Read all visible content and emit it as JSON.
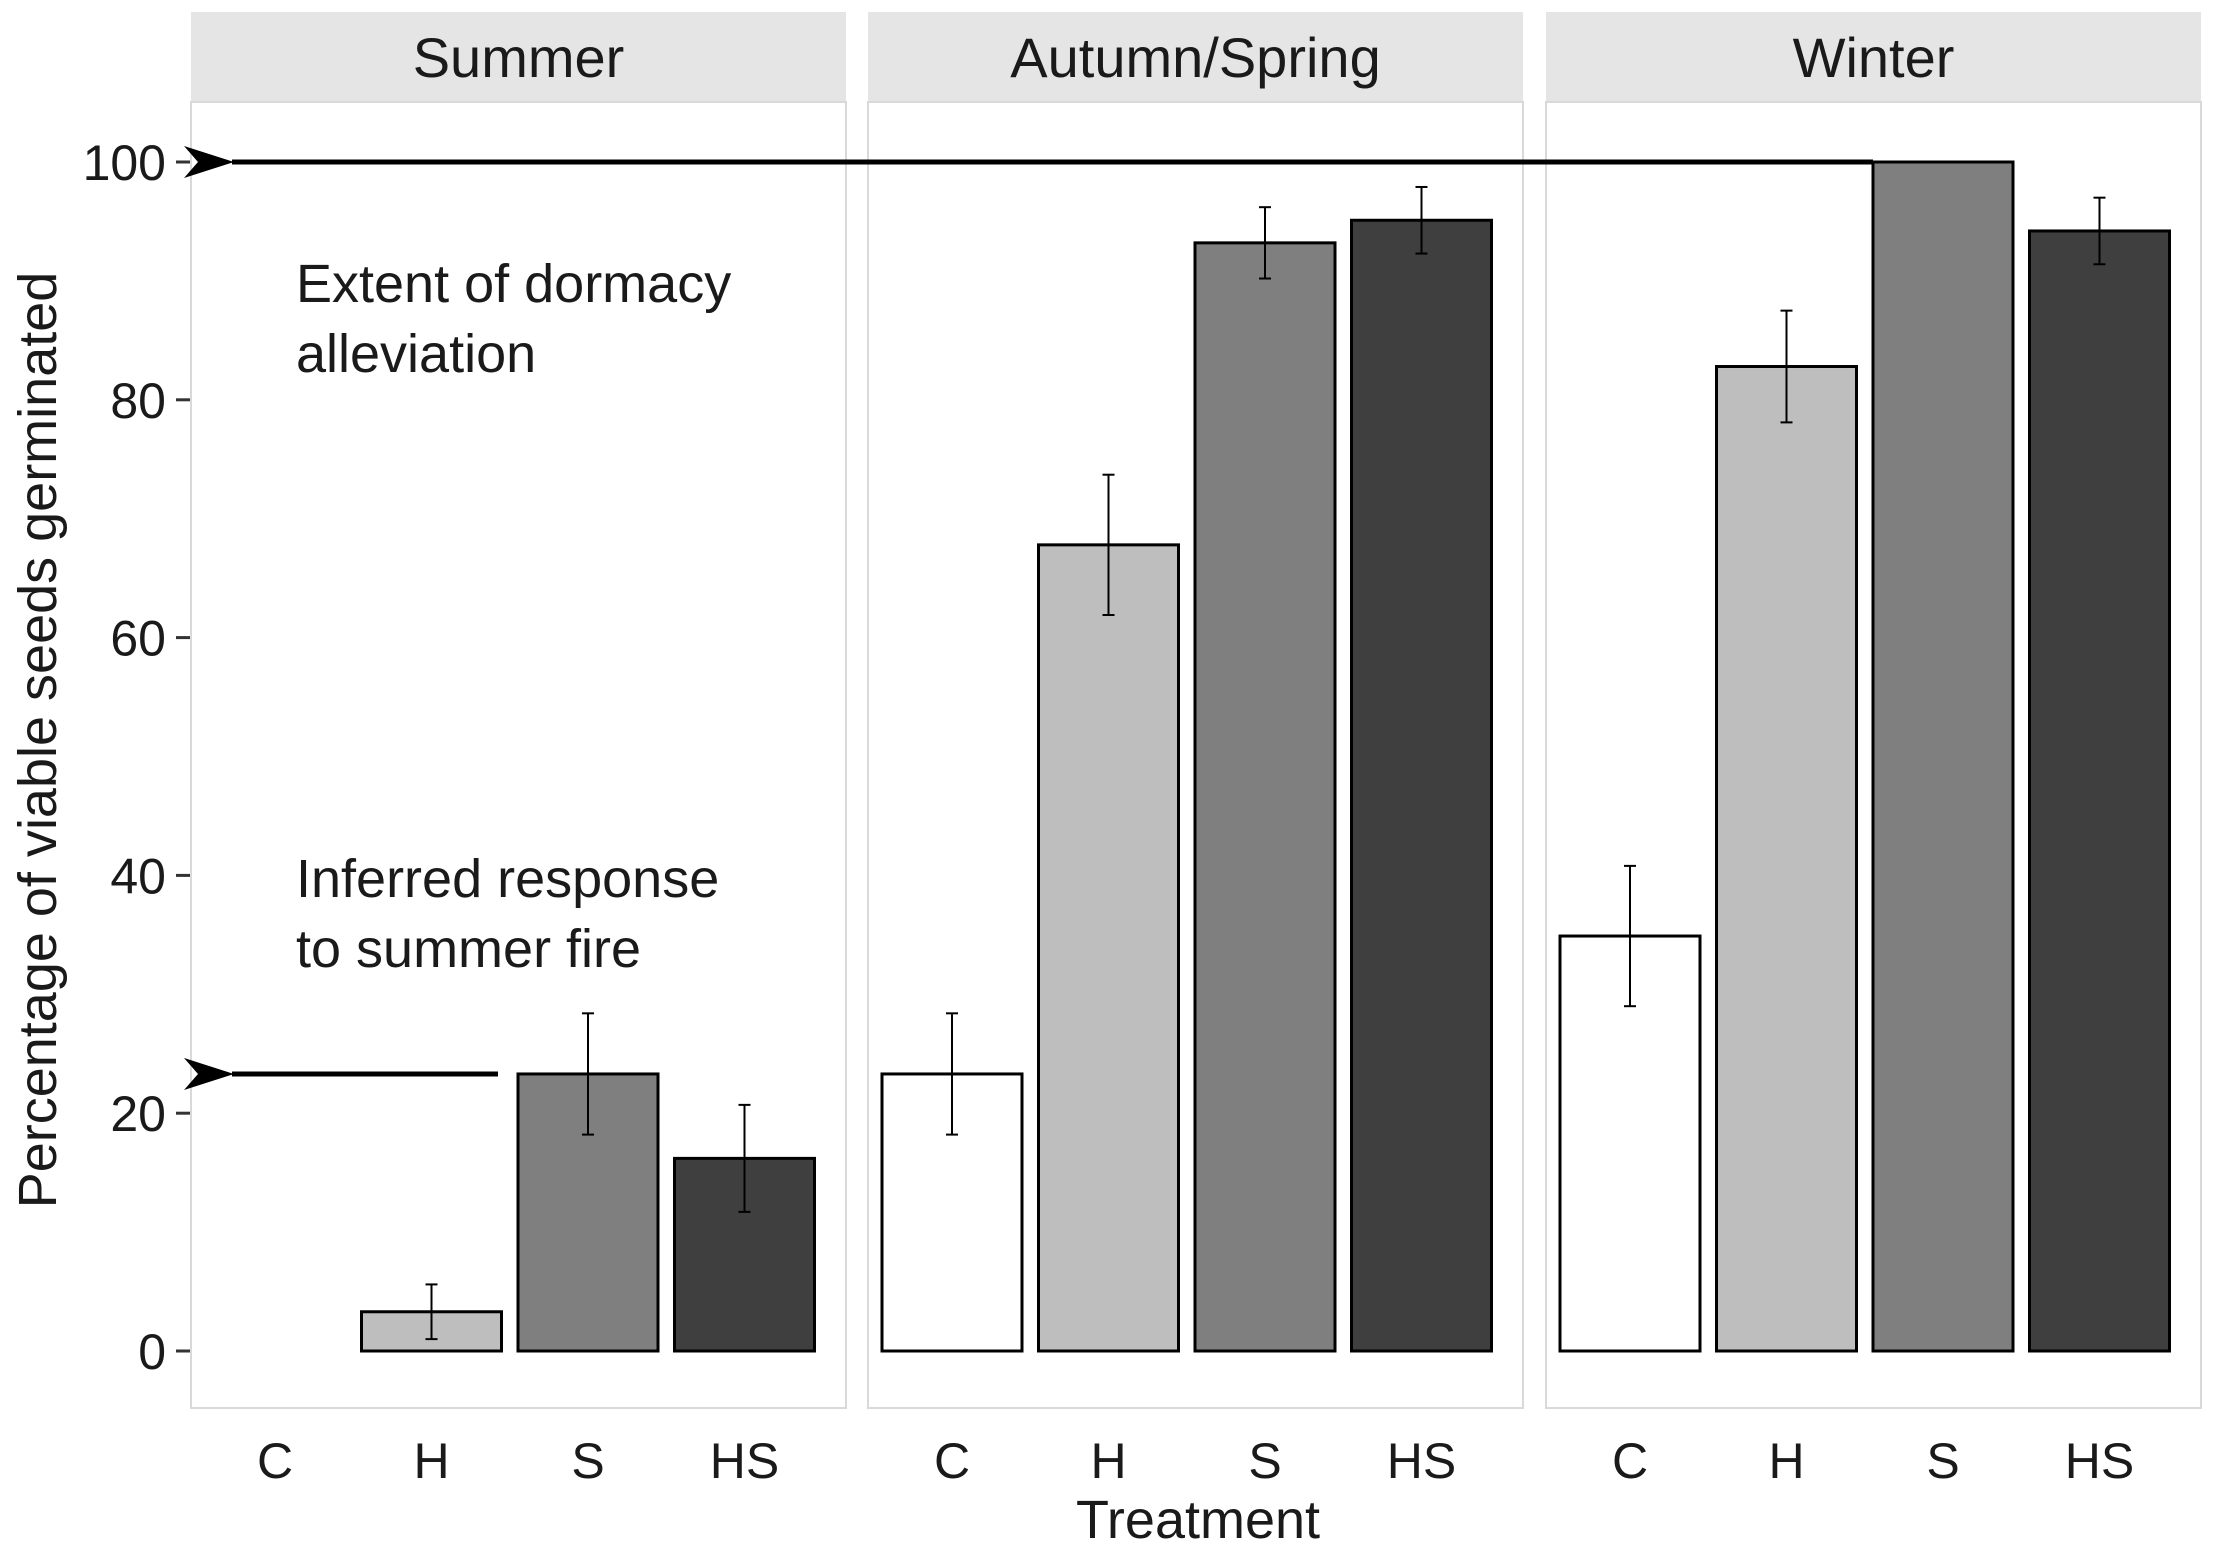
{
  "chart_data": {
    "type": "bar",
    "xlabel": "Treatment",
    "ylabel": "Percentage of viable seeds germinated",
    "ylim": [
      0,
      105
    ],
    "yticks": [
      0,
      20,
      40,
      60,
      80,
      100
    ],
    "categories": [
      "C",
      "H",
      "S",
      "HS"
    ],
    "grid": false,
    "colors": {
      "C": "#ffffff",
      "H": "#bebebe",
      "S": "#7f7f7f",
      "HS": "#3f3f3f",
      "strip": "#e5e5e5",
      "panel_border": "#d9d9d9"
    },
    "panels": [
      {
        "label": "Summer",
        "values": [
          0,
          3.3,
          23.3,
          16.2
        ],
        "errors": [
          0,
          2.3,
          5.1,
          4.5
        ]
      },
      {
        "label": "Autumn/Spring",
        "values": [
          23.3,
          67.8,
          93.2,
          95.1
        ],
        "errors": [
          5.1,
          5.9,
          3.0,
          2.8
        ]
      },
      {
        "label": "Winter",
        "values": [
          34.9,
          82.8,
          100,
          94.2
        ],
        "errors": [
          5.9,
          4.7,
          0,
          2.8
        ]
      }
    ],
    "annotations": [
      {
        "text": [
          "Extent of dormacy",
          "alleviation"
        ],
        "arrow_to_y": 100,
        "panel": "Winter",
        "category": "S"
      },
      {
        "text": [
          "Inferred response",
          "to summer fire"
        ],
        "arrow_to_y": 23.3,
        "panel": "Summer",
        "category": "S"
      }
    ]
  }
}
